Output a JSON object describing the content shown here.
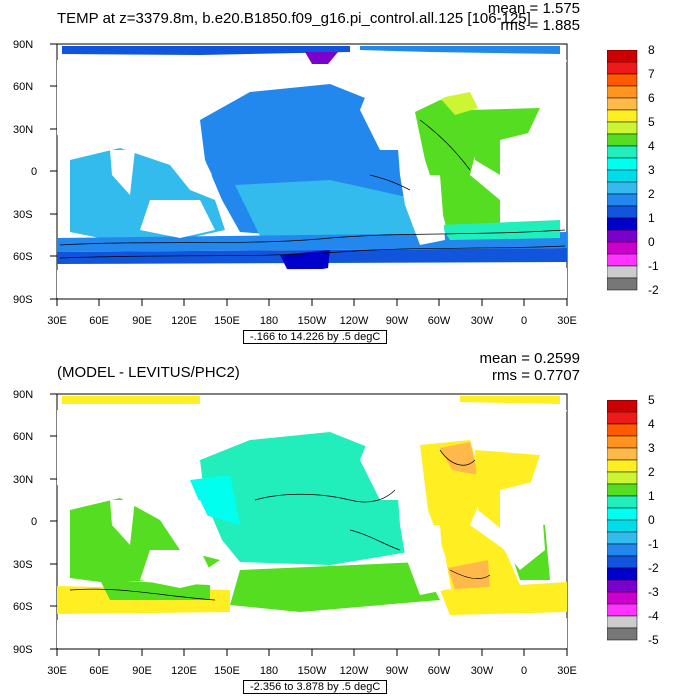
{
  "panels": [
    {
      "title": "TEMP at z=3379.8m, b.e20.B1850.f09_g16.pi_control.all.125 [106-125]",
      "mean": "mean = 1.575",
      "rms": "rms = 1.885",
      "range": "-.166 to 14.226 by .5 degC",
      "colorbar_labels": [
        "8",
        "7",
        "6",
        "5",
        "4",
        "3",
        "2",
        "1",
        "0",
        "-1",
        "-2"
      ],
      "colorbar_colors": [
        "#cc0000",
        "#ee1a1a",
        "#ff5a00",
        "#ff9420",
        "#ffb84a",
        "#ffee22",
        "#ccf533",
        "#55dd22",
        "#22eebb",
        "#00ffee",
        "#00dde8",
        "#33bbee",
        "#2288ee",
        "#1155dd",
        "#0000cc",
        "#7a00cc",
        "#cc00cc",
        "#ff33ff",
        "#cccccc",
        "#777777"
      ]
    },
    {
      "title": "(MODEL - LEVITUS/PHC2)",
      "mean": "mean = 0.2599",
      "rms": "rms = 0.7707",
      "range": "-2.356 to 3.878 by .5 degC",
      "colorbar_labels": [
        "5",
        "4",
        "3",
        "2",
        "1",
        "0",
        "-1",
        "-2",
        "-3",
        "-4",
        "-5"
      ],
      "colorbar_colors": [
        "#cc0000",
        "#ee1a1a",
        "#ff5a00",
        "#ff9420",
        "#ffb84a",
        "#ffee22",
        "#ccf533",
        "#55dd22",
        "#22eebb",
        "#00ffee",
        "#00dde8",
        "#33bbee",
        "#2288ee",
        "#1155dd",
        "#0000cc",
        "#7a00cc",
        "#cc00cc",
        "#ff33ff",
        "#cccccc",
        "#777777"
      ]
    }
  ],
  "lat_labels": [
    "90N",
    "60N",
    "30N",
    "0",
    "30S",
    "60S",
    "90S"
  ],
  "lon_labels": [
    "30E",
    "60E",
    "90E",
    "120E",
    "150E",
    "180",
    "150W",
    "120W",
    "90W",
    "60W",
    "30W",
    "0",
    "30E"
  ]
}
